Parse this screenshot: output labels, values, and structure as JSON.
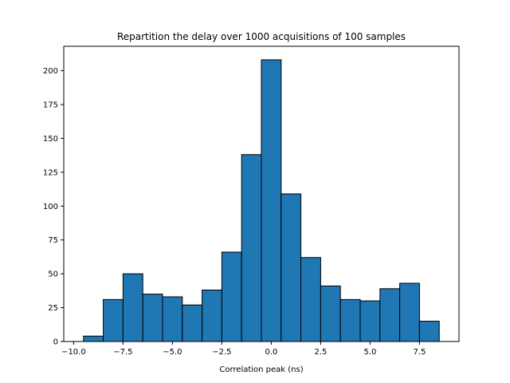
{
  "chart_data": {
    "type": "bar",
    "subtype": "histogram",
    "title": "Repartition the delay over 1000 acquisitions of 100 samples",
    "xlabel": "Correlation peak (ns)",
    "ylabel": "",
    "xlim": [
      -10.5,
      9.5
    ],
    "ylim": [
      0,
      218
    ],
    "xticks": [
      -10.0,
      -7.5,
      -5.0,
      -2.5,
      0.0,
      2.5,
      5.0,
      7.5
    ],
    "xtick_labels": [
      "−10.0",
      "−7.5",
      "−5.0",
      "−2.5",
      "0.0",
      "2.5",
      "5.0",
      "7.5"
    ],
    "yticks": [
      0,
      25,
      50,
      75,
      100,
      125,
      150,
      175,
      200
    ],
    "ytick_labels": [
      "0",
      "25",
      "50",
      "75",
      "100",
      "125",
      "150",
      "175",
      "200"
    ],
    "bin_edges": [
      -9.5,
      -8.5,
      -7.5,
      -6.5,
      -5.5,
      -4.5,
      -3.5,
      -2.5,
      -1.5,
      -0.5,
      0.5,
      1.5,
      2.5,
      3.5,
      4.5,
      5.5,
      6.5,
      7.5,
      8.5
    ],
    "values": [
      4,
      31,
      50,
      35,
      33,
      27,
      38,
      66,
      138,
      208,
      109,
      62,
      41,
      31,
      30,
      39,
      43,
      15
    ],
    "bar_color": "#1f77b4",
    "edge_color": "#000000",
    "grid": false,
    "legend": "none"
  }
}
